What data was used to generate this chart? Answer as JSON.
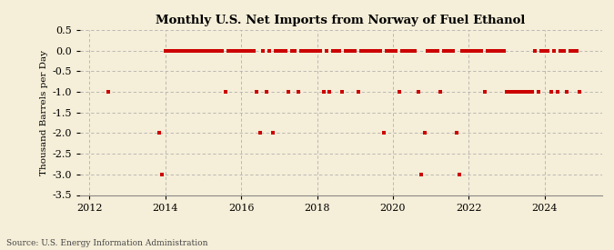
{
  "title": "Monthly U.S. Net Imports from Norway of Fuel Ethanol",
  "ylabel": "Thousand Barrels per Day",
  "source": "Source: U.S. Energy Information Administration",
  "background_color": "#f5eed8",
  "marker_color": "#cc0000",
  "xlim": [
    2011.75,
    2025.5
  ],
  "ylim": [
    -3.5,
    0.5
  ],
  "yticks": [
    0.5,
    0.0,
    -0.5,
    -1.0,
    -1.5,
    -2.0,
    -2.5,
    -3.0,
    -3.5
  ],
  "xticks": [
    2012,
    2014,
    2016,
    2018,
    2020,
    2022,
    2024
  ],
  "data": [
    [
      2012.5,
      -1.0
    ],
    [
      2013.833,
      -2.0
    ],
    [
      2013.917,
      -3.0
    ],
    [
      2014.0,
      0.0
    ],
    [
      2014.083,
      0.0
    ],
    [
      2014.167,
      0.0
    ],
    [
      2014.25,
      0.0
    ],
    [
      2014.333,
      0.0
    ],
    [
      2014.417,
      0.0
    ],
    [
      2014.5,
      0.0
    ],
    [
      2014.583,
      0.0
    ],
    [
      2014.667,
      0.0
    ],
    [
      2014.75,
      0.0
    ],
    [
      2014.833,
      0.0
    ],
    [
      2014.917,
      0.0
    ],
    [
      2015.0,
      0.0
    ],
    [
      2015.083,
      0.0
    ],
    [
      2015.167,
      0.0
    ],
    [
      2015.25,
      0.0
    ],
    [
      2015.333,
      0.0
    ],
    [
      2015.417,
      0.0
    ],
    [
      2015.5,
      0.0
    ],
    [
      2015.583,
      -1.0
    ],
    [
      2015.667,
      0.0
    ],
    [
      2015.75,
      0.0
    ],
    [
      2015.833,
      0.0
    ],
    [
      2015.917,
      0.0
    ],
    [
      2016.0,
      0.0
    ],
    [
      2016.083,
      0.0
    ],
    [
      2016.167,
      0.0
    ],
    [
      2016.25,
      0.0
    ],
    [
      2016.333,
      0.0
    ],
    [
      2016.417,
      -1.0
    ],
    [
      2016.5,
      -2.0
    ],
    [
      2016.583,
      0.0
    ],
    [
      2016.667,
      -1.0
    ],
    [
      2016.75,
      0.0
    ],
    [
      2016.833,
      -2.0
    ],
    [
      2016.917,
      0.0
    ],
    [
      2017.0,
      0.0
    ],
    [
      2017.083,
      0.0
    ],
    [
      2017.167,
      0.0
    ],
    [
      2017.25,
      -1.0
    ],
    [
      2017.333,
      0.0
    ],
    [
      2017.417,
      0.0
    ],
    [
      2017.5,
      -1.0
    ],
    [
      2017.583,
      0.0
    ],
    [
      2017.667,
      0.0
    ],
    [
      2017.75,
      0.0
    ],
    [
      2017.833,
      0.0
    ],
    [
      2017.917,
      0.0
    ],
    [
      2018.0,
      0.0
    ],
    [
      2018.083,
      0.0
    ],
    [
      2018.167,
      -1.0
    ],
    [
      2018.25,
      0.0
    ],
    [
      2018.333,
      -1.0
    ],
    [
      2018.417,
      0.0
    ],
    [
      2018.5,
      0.0
    ],
    [
      2018.583,
      0.0
    ],
    [
      2018.667,
      -1.0
    ],
    [
      2018.75,
      0.0
    ],
    [
      2018.833,
      0.0
    ],
    [
      2018.917,
      0.0
    ],
    [
      2019.0,
      0.0
    ],
    [
      2019.083,
      -1.0
    ],
    [
      2019.167,
      0.0
    ],
    [
      2019.25,
      0.0
    ],
    [
      2019.333,
      0.0
    ],
    [
      2019.417,
      0.0
    ],
    [
      2019.5,
      0.0
    ],
    [
      2019.583,
      0.0
    ],
    [
      2019.667,
      0.0
    ],
    [
      2019.75,
      -2.0
    ],
    [
      2019.833,
      0.0
    ],
    [
      2019.917,
      0.0
    ],
    [
      2020.0,
      0.0
    ],
    [
      2020.083,
      0.0
    ],
    [
      2020.167,
      -1.0
    ],
    [
      2020.25,
      0.0
    ],
    [
      2020.333,
      0.0
    ],
    [
      2020.417,
      0.0
    ],
    [
      2020.5,
      0.0
    ],
    [
      2020.583,
      0.0
    ],
    [
      2020.667,
      -1.0
    ],
    [
      2020.75,
      -3.0
    ],
    [
      2020.833,
      -2.0
    ],
    [
      2020.917,
      0.0
    ],
    [
      2021.0,
      0.0
    ],
    [
      2021.083,
      0.0
    ],
    [
      2021.167,
      0.0
    ],
    [
      2021.25,
      -1.0
    ],
    [
      2021.333,
      0.0
    ],
    [
      2021.417,
      0.0
    ],
    [
      2021.5,
      0.0
    ],
    [
      2021.583,
      0.0
    ],
    [
      2021.667,
      -2.0
    ],
    [
      2021.75,
      -3.0
    ],
    [
      2021.833,
      0.0
    ],
    [
      2021.917,
      0.0
    ],
    [
      2022.0,
      0.0
    ],
    [
      2022.083,
      0.0
    ],
    [
      2022.167,
      0.0
    ],
    [
      2022.25,
      0.0
    ],
    [
      2022.333,
      0.0
    ],
    [
      2022.417,
      -1.0
    ],
    [
      2022.5,
      0.0
    ],
    [
      2022.583,
      0.0
    ],
    [
      2022.667,
      0.0
    ],
    [
      2022.75,
      0.0
    ],
    [
      2022.833,
      0.0
    ],
    [
      2022.917,
      0.0
    ],
    [
      2023.0,
      -1.0
    ],
    [
      2023.083,
      -1.0
    ],
    [
      2023.167,
      -1.0
    ],
    [
      2023.25,
      -1.0
    ],
    [
      2023.333,
      -1.0
    ],
    [
      2023.417,
      -1.0
    ],
    [
      2023.5,
      -1.0
    ],
    [
      2023.583,
      -1.0
    ],
    [
      2023.667,
      -1.0
    ],
    [
      2023.75,
      0.0
    ],
    [
      2023.833,
      -1.0
    ],
    [
      2023.917,
      0.0
    ],
    [
      2024.0,
      0.0
    ],
    [
      2024.083,
      0.0
    ],
    [
      2024.167,
      -1.0
    ],
    [
      2024.25,
      0.0
    ],
    [
      2024.333,
      -1.0
    ],
    [
      2024.417,
      0.0
    ],
    [
      2024.5,
      0.0
    ],
    [
      2024.583,
      -1.0
    ],
    [
      2024.667,
      0.0
    ],
    [
      2024.75,
      0.0
    ],
    [
      2024.833,
      0.0
    ],
    [
      2024.917,
      -1.0
    ]
  ]
}
